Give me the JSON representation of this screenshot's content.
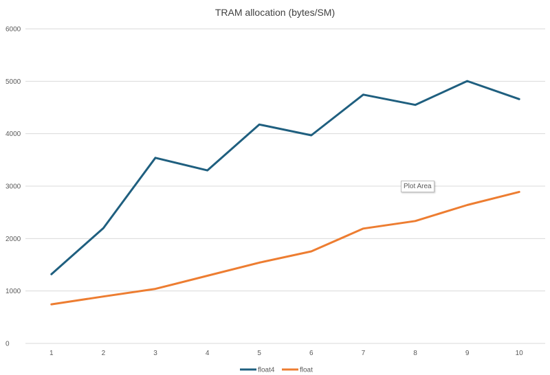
{
  "chart_data": {
    "type": "line",
    "title": "TRAM allocation (bytes/SM)",
    "categories": [
      "1",
      "2",
      "3",
      "4",
      "5",
      "6",
      "7",
      "8",
      "9",
      "10"
    ],
    "ylim": [
      0,
      6000
    ],
    "yticks": [
      0,
      1000,
      2000,
      3000,
      4000,
      5000,
      6000
    ],
    "grid": true,
    "legend": "bottom",
    "series": [
      {
        "name": "float4",
        "color": "#1f5f7f",
        "values": [
          1320,
          2200,
          3540,
          3300,
          4175,
          3970,
          4745,
          4550,
          5005,
          4660
        ]
      },
      {
        "name": "float",
        "color": "#ed7d31",
        "values": [
          745,
          895,
          1040,
          1290,
          1540,
          1755,
          2190,
          2335,
          2640,
          2890
        ]
      }
    ]
  },
  "tooltip": {
    "text": "Plot Area"
  }
}
